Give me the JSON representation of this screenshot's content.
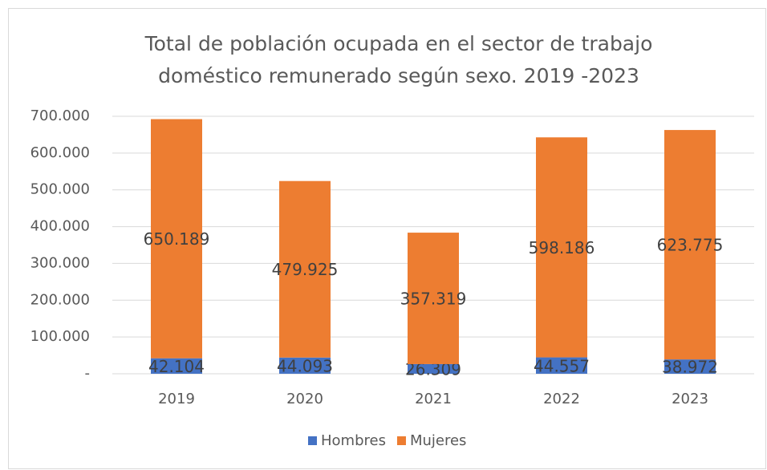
{
  "chart_data": {
    "type": "stacked_bar",
    "title": [
      "Total de población ocupada en el sector de trabajo",
      "doméstico remunerado según sexo. 2019 -2023"
    ],
    "categories": [
      "2019",
      "2020",
      "2021",
      "2022",
      "2023"
    ],
    "series": [
      {
        "name": "Hombres",
        "color": "#4472c4",
        "values": [
          42104,
          44093,
          26309,
          44557,
          38972
        ],
        "value_labels": [
          "42.104",
          "44.093",
          "26.309",
          "44.557",
          "38.972"
        ]
      },
      {
        "name": "Mujeres",
        "color": "#ed7d31",
        "values": [
          650189,
          479925,
          357319,
          598186,
          623775
        ],
        "value_labels": [
          "650.189",
          "479.925",
          "357.319",
          "598.186",
          "623.775"
        ]
      }
    ],
    "ylim": [
      0,
      700000
    ],
    "yticks": [
      {
        "value": 0,
        "label": "-"
      },
      {
        "value": 100000,
        "label": "100.000"
      },
      {
        "value": 200000,
        "label": "200.000"
      },
      {
        "value": 300000,
        "label": "300.000"
      },
      {
        "value": 400000,
        "label": "400.000"
      },
      {
        "value": 500000,
        "label": "500.000"
      },
      {
        "value": 600000,
        "label": "600.000"
      },
      {
        "value": 700000,
        "label": "700.000"
      }
    ],
    "grid": true,
    "legend": "bottom"
  }
}
